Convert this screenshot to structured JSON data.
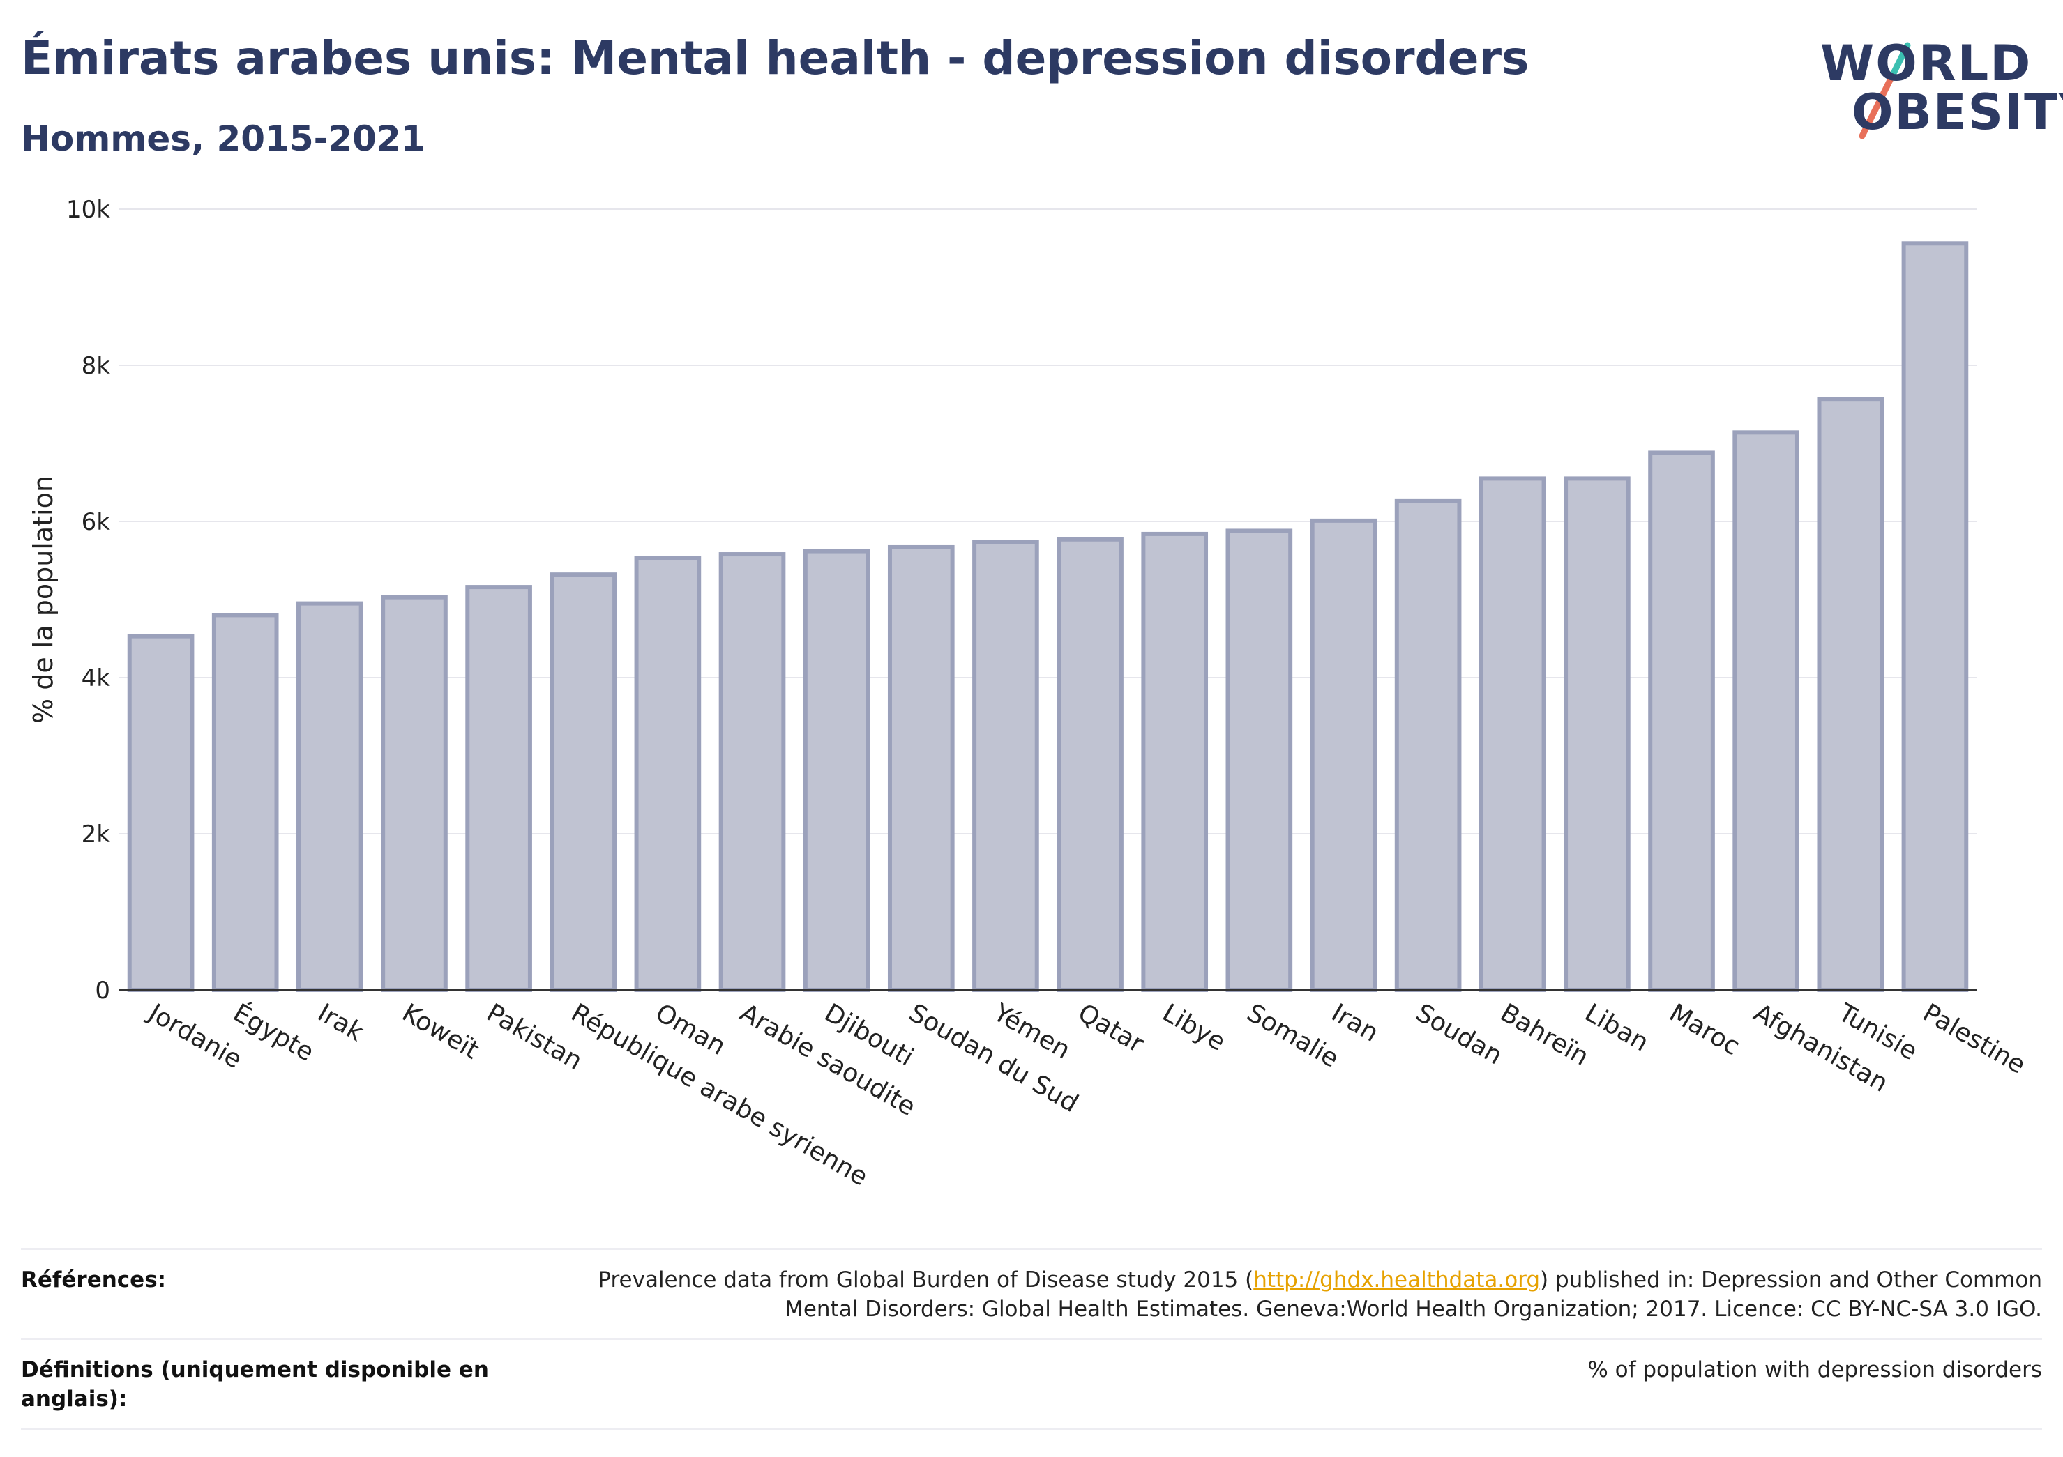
{
  "header": {
    "title": "Émirats arabes unis: Mental health - depression disorders",
    "subtitle": "Hommes, 2015-2021"
  },
  "logo": {
    "line1": "WORLD",
    "line2": "OBESITY",
    "accent_teal": "#3bbfb1",
    "accent_red": "#e8705a",
    "text_color": "#2d3a63"
  },
  "chart_data": {
    "type": "bar",
    "title": "Émirats arabes unis: Mental health - depression disorders",
    "subtitle": "Hommes, 2015-2021",
    "ylabel": "% de la population",
    "xlabel": "",
    "ylim": [
      0,
      10000
    ],
    "yticks": [
      0,
      2000,
      4000,
      6000,
      8000,
      10000
    ],
    "ytick_labels": [
      "0",
      "2k",
      "4k",
      "6k",
      "8k",
      "10k"
    ],
    "grid": true,
    "bar_color": "#c0c3d2",
    "bar_edge_color": "#9ba1bb",
    "categories": [
      "Jordanie",
      "Égypte",
      "Irak",
      "Koweït",
      "Pakistan",
      "République arabe syrienne",
      "Oman",
      "Arabie saoudite",
      "Djibouti",
      "Soudan du Sud",
      "Yémen",
      "Qatar",
      "Libye",
      "Somalie",
      "Iran",
      "Soudan",
      "Bahreïn",
      "Liban",
      "Maroc",
      "Afghanistan",
      "Tunisie",
      "Palestine"
    ],
    "values": [
      4530,
      4800,
      4950,
      5030,
      5160,
      5320,
      5530,
      5580,
      5620,
      5670,
      5740,
      5770,
      5840,
      5880,
      6010,
      6260,
      6550,
      6550,
      6880,
      7140,
      7570,
      9560
    ]
  },
  "footer": {
    "references_label": "Références:",
    "references_text_before": "Prevalence data from Global Burden of Disease study 2015 (",
    "references_link": "http://ghdx.healthdata.org",
    "references_text_after": ") published in: Depression and Other Common Mental Disorders: Global Health Estimates. Geneva:World Health Organization; 2017. Licence: CC BY-NC-SA 3.0 IGO.",
    "definitions_label": "Définitions (uniquement disponible en anglais):",
    "definitions_text": "% of population with depression disorders"
  }
}
